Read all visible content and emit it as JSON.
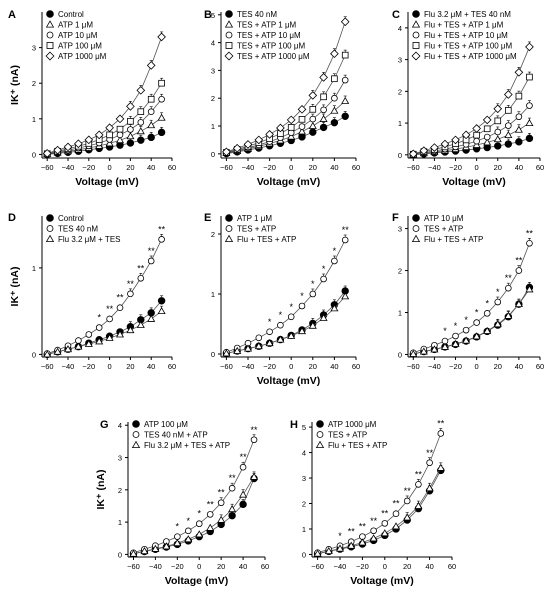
{
  "figure": {
    "xlabel": "Voltage (mV)",
    "ylabel": "IK⁺ (nA)"
  },
  "chart_data": [
    {
      "panel": "A",
      "type": "scatter",
      "x": [
        -60,
        -50,
        -40,
        -30,
        -20,
        -10,
        0,
        10,
        20,
        30,
        40,
        50
      ],
      "xticks": [
        "-60",
        "-40",
        "-20",
        "0",
        "20",
        "40",
        "60"
      ],
      "yticks": [
        "0",
        "1",
        "2",
        "3"
      ],
      "xlim": [
        -65,
        60
      ],
      "ylim": [
        -0.1,
        4.0
      ],
      "legend": "top-left",
      "series": [
        {
          "name": "Control",
          "marker": "filled-circle",
          "values": [
            0.0,
            0.03,
            0.06,
            0.09,
            0.13,
            0.17,
            0.21,
            0.26,
            0.32,
            0.4,
            0.48,
            0.62
          ]
        },
        {
          "name": "ATP 1 μM",
          "marker": "triangle",
          "values": [
            0.01,
            0.05,
            0.09,
            0.13,
            0.18,
            0.24,
            0.31,
            0.4,
            0.51,
            0.65,
            0.82,
            1.03
          ]
        },
        {
          "name": "ATP 10 μM",
          "marker": "circle",
          "values": [
            0.01,
            0.07,
            0.12,
            0.18,
            0.24,
            0.32,
            0.42,
            0.55,
            0.7,
            0.9,
            1.2,
            1.55
          ]
        },
        {
          "name": "ATP 100 μM",
          "marker": "square",
          "values": [
            0.02,
            0.09,
            0.16,
            0.23,
            0.31,
            0.42,
            0.55,
            0.71,
            0.93,
            1.2,
            1.55,
            2.0
          ]
        },
        {
          "name": "ATP 1000 μM",
          "marker": "diamond",
          "values": [
            0.03,
            0.12,
            0.21,
            0.3,
            0.41,
            0.55,
            0.75,
            1.0,
            1.35,
            1.8,
            2.5,
            3.3
          ]
        }
      ]
    },
    {
      "panel": "B",
      "type": "scatter",
      "x": [
        -60,
        -50,
        -40,
        -30,
        -20,
        -10,
        0,
        10,
        20,
        30,
        40,
        50
      ],
      "xticks": [
        "-60",
        "-40",
        "-20",
        "0",
        "20",
        "40",
        "60"
      ],
      "yticks": [
        "0",
        "1",
        "2",
        "3",
        "4",
        "5"
      ],
      "xlim": [
        -65,
        60
      ],
      "ylim": [
        -0.15,
        5.1
      ],
      "legend": "top-left",
      "series": [
        {
          "name": "TES 40 nM",
          "marker": "filled-circle",
          "values": [
            0.01,
            0.07,
            0.14,
            0.21,
            0.29,
            0.38,
            0.48,
            0.61,
            0.78,
            0.95,
            1.12,
            1.35
          ]
        },
        {
          "name": "TES + ATP 1 μM",
          "marker": "triangle",
          "values": [
            0.03,
            0.1,
            0.18,
            0.27,
            0.37,
            0.48,
            0.62,
            0.8,
            1.0,
            1.25,
            1.55,
            1.9
          ]
        },
        {
          "name": "TES + ATP 10 μM",
          "marker": "circle",
          "values": [
            0.04,
            0.13,
            0.22,
            0.32,
            0.44,
            0.58,
            0.76,
            0.98,
            1.25,
            1.58,
            2.0,
            2.65
          ]
        },
        {
          "name": "TES + ATP 100 μM",
          "marker": "square",
          "values": [
            0.05,
            0.16,
            0.27,
            0.4,
            0.55,
            0.73,
            0.95,
            1.24,
            1.6,
            2.05,
            2.7,
            3.55
          ]
        },
        {
          "name": "TES + ATP 1000 μM",
          "marker": "diamond",
          "values": [
            0.07,
            0.2,
            0.34,
            0.5,
            0.7,
            0.93,
            1.22,
            1.6,
            2.1,
            2.75,
            3.6,
            4.75
          ]
        }
      ]
    },
    {
      "panel": "C",
      "type": "scatter",
      "x": [
        -60,
        -50,
        -40,
        -30,
        -20,
        -10,
        0,
        10,
        20,
        30,
        40,
        50
      ],
      "xticks": [
        "-60",
        "-40",
        "-20",
        "0",
        "20",
        "40",
        "60"
      ],
      "yticks": [
        "0",
        "1",
        "2",
        "3",
        "4"
      ],
      "xlim": [
        -65,
        60
      ],
      "ylim": [
        -0.1,
        4.5
      ],
      "legend": "top-left",
      "series": [
        {
          "name": "Flu 3.2 μM + TES 40 nM",
          "marker": "filled-circle",
          "values": [
            0.0,
            0.03,
            0.06,
            0.09,
            0.12,
            0.15,
            0.19,
            0.23,
            0.28,
            0.34,
            0.41,
            0.52
          ]
        },
        {
          "name": "Flu + TES + ATP 1 μM",
          "marker": "triangle",
          "values": [
            0.01,
            0.05,
            0.09,
            0.13,
            0.18,
            0.24,
            0.31,
            0.39,
            0.49,
            0.62,
            0.79,
            1.0
          ]
        },
        {
          "name": "Flu + TES + ATP 10 μM",
          "marker": "circle",
          "values": [
            0.01,
            0.07,
            0.12,
            0.18,
            0.25,
            0.33,
            0.43,
            0.56,
            0.72,
            0.92,
            1.2,
            1.55
          ]
        },
        {
          "name": "Flu + TES + ATP 100 μM",
          "marker": "square",
          "values": [
            0.02,
            0.1,
            0.17,
            0.25,
            0.35,
            0.47,
            0.62,
            0.82,
            1.07,
            1.4,
            1.85,
            2.45
          ]
        },
        {
          "name": "Flu + TES + ATP 1000 μM",
          "marker": "diamond",
          "values": [
            0.03,
            0.13,
            0.23,
            0.34,
            0.47,
            0.63,
            0.83,
            1.1,
            1.45,
            1.9,
            2.6,
            3.4
          ]
        }
      ]
    },
    {
      "panel": "D",
      "type": "scatter",
      "x": [
        -60,
        -50,
        -40,
        -30,
        -20,
        -10,
        0,
        10,
        20,
        30,
        40,
        50
      ],
      "xticks": [
        "-60",
        "-40",
        "-20",
        "0",
        "20",
        "40",
        "60"
      ],
      "yticks": [
        "0",
        "1"
      ],
      "xlim": [
        -65,
        60
      ],
      "ylim": [
        -0.03,
        1.6
      ],
      "legend": "top-left",
      "series": [
        {
          "name": "Control",
          "marker": "filled-circle",
          "values": [
            0.0,
            0.03,
            0.06,
            0.09,
            0.13,
            0.17,
            0.21,
            0.26,
            0.32,
            0.4,
            0.48,
            0.62
          ]
        },
        {
          "name": "TES 40 nM",
          "marker": "circle",
          "values": [
            0.01,
            0.05,
            0.1,
            0.16,
            0.23,
            0.31,
            0.41,
            0.54,
            0.7,
            0.88,
            1.08,
            1.33
          ]
        },
        {
          "name": "Flu 3.2 μM + TES",
          "marker": "triangle",
          "values": [
            0.0,
            0.03,
            0.06,
            0.09,
            0.12,
            0.15,
            0.19,
            0.23,
            0.28,
            0.34,
            0.41,
            0.5
          ]
        }
      ],
      "annotations": [
        {
          "x": -10,
          "text": "*"
        },
        {
          "x": 0,
          "text": "**"
        },
        {
          "x": 10,
          "text": "**"
        },
        {
          "x": 20,
          "text": "**"
        },
        {
          "x": 30,
          "text": "**"
        },
        {
          "x": 40,
          "text": "**"
        },
        {
          "x": 50,
          "text": "**"
        }
      ]
    },
    {
      "panel": "E",
      "type": "scatter",
      "x": [
        -60,
        -50,
        -40,
        -30,
        -20,
        -10,
        0,
        10,
        20,
        30,
        40,
        50
      ],
      "xticks": [
        "-60",
        "-40",
        "-20",
        "0",
        "20",
        "40",
        "60"
      ],
      "yticks": [
        "0",
        "1",
        "2"
      ],
      "xlim": [
        -65,
        60
      ],
      "ylim": [
        -0.05,
        2.3
      ],
      "legend": "top-left",
      "series": [
        {
          "name": "ATP 1 μM",
          "marker": "filled-circle",
          "values": [
            0.01,
            0.05,
            0.09,
            0.13,
            0.18,
            0.24,
            0.31,
            0.4,
            0.51,
            0.65,
            0.82,
            1.05
          ]
        },
        {
          "name": "TES + ATP",
          "marker": "circle",
          "values": [
            0.03,
            0.1,
            0.18,
            0.27,
            0.37,
            0.48,
            0.62,
            0.8,
            1.0,
            1.25,
            1.55,
            1.9
          ]
        },
        {
          "name": "Flu + TES + ATP",
          "marker": "triangle",
          "values": [
            0.01,
            0.05,
            0.09,
            0.13,
            0.18,
            0.24,
            0.3,
            0.38,
            0.47,
            0.6,
            0.76,
            0.96
          ]
        }
      ],
      "annotations": [
        {
          "x": -20,
          "text": "*"
        },
        {
          "x": -10,
          "text": "*"
        },
        {
          "x": 0,
          "text": "*"
        },
        {
          "x": 10,
          "text": "*"
        },
        {
          "x": 20,
          "text": "*"
        },
        {
          "x": 30,
          "text": "*"
        },
        {
          "x": 40,
          "text": "*"
        },
        {
          "x": 50,
          "text": "**"
        }
      ]
    },
    {
      "panel": "F",
      "type": "scatter",
      "x": [
        -60,
        -50,
        -40,
        -30,
        -20,
        -10,
        0,
        10,
        20,
        30,
        40,
        50
      ],
      "xticks": [
        "-60",
        "-40",
        "-20",
        "0",
        "20",
        "40",
        "60"
      ],
      "yticks": [
        "0",
        "1",
        "2",
        "3"
      ],
      "xlim": [
        -65,
        60
      ],
      "ylim": [
        -0.06,
        3.3
      ],
      "legend": "top-left",
      "series": [
        {
          "name": "ATP 10 μM",
          "marker": "filled-circle",
          "values": [
            0.01,
            0.07,
            0.12,
            0.18,
            0.24,
            0.32,
            0.42,
            0.55,
            0.7,
            0.9,
            1.2,
            1.6
          ]
        },
        {
          "name": "TES + ATP",
          "marker": "circle",
          "values": [
            0.04,
            0.13,
            0.22,
            0.32,
            0.44,
            0.58,
            0.76,
            0.98,
            1.25,
            1.58,
            2.0,
            2.65
          ]
        },
        {
          "name": "Flu + TES + ATP",
          "marker": "triangle",
          "values": [
            0.01,
            0.07,
            0.12,
            0.18,
            0.25,
            0.33,
            0.43,
            0.56,
            0.72,
            0.92,
            1.2,
            1.55
          ]
        }
      ],
      "annotations": [
        {
          "x": -30,
          "text": "*"
        },
        {
          "x": -20,
          "text": "*"
        },
        {
          "x": -10,
          "text": "*"
        },
        {
          "x": 0,
          "text": "*"
        },
        {
          "x": 10,
          "text": "*"
        },
        {
          "x": 20,
          "text": "*"
        },
        {
          "x": 30,
          "text": "**"
        },
        {
          "x": 40,
          "text": "**"
        },
        {
          "x": 50,
          "text": "**"
        }
      ]
    },
    {
      "panel": "G",
      "type": "scatter",
      "x": [
        -60,
        -50,
        -40,
        -30,
        -20,
        -10,
        0,
        10,
        20,
        30,
        40,
        50
      ],
      "xticks": [
        "-60",
        "-40",
        "-20",
        "0",
        "20",
        "40",
        "60"
      ],
      "yticks": [
        "0",
        "1",
        "2",
        "3",
        "4"
      ],
      "xlim": [
        -65,
        60
      ],
      "ylim": [
        -0.08,
        4.1
      ],
      "legend": "top-left",
      "series": [
        {
          "name": "ATP 100 μM",
          "marker": "filled-circle",
          "values": [
            0.02,
            0.09,
            0.16,
            0.23,
            0.31,
            0.42,
            0.55,
            0.71,
            0.93,
            1.2,
            1.55,
            2.35
          ]
        },
        {
          "name": "TES 40 nM + ATP",
          "marker": "circle",
          "values": [
            0.05,
            0.16,
            0.27,
            0.4,
            0.55,
            0.73,
            0.95,
            1.24,
            1.6,
            2.05,
            2.7,
            3.55
          ]
        },
        {
          "name": "Flu 3.2 μM + TES + ATP",
          "marker": "triangle",
          "values": [
            0.02,
            0.1,
            0.17,
            0.25,
            0.35,
            0.47,
            0.62,
            0.82,
            1.07,
            1.4,
            1.85,
            2.4
          ]
        }
      ],
      "annotations": [
        {
          "x": -20,
          "text": "*"
        },
        {
          "x": -10,
          "text": "*"
        },
        {
          "x": 0,
          "text": "*"
        },
        {
          "x": 10,
          "text": "**"
        },
        {
          "x": 20,
          "text": "**"
        },
        {
          "x": 30,
          "text": "**"
        },
        {
          "x": 40,
          "text": "**"
        },
        {
          "x": 50,
          "text": "**"
        }
      ]
    },
    {
      "panel": "H",
      "type": "scatter",
      "x": [
        -60,
        -50,
        -40,
        -30,
        -20,
        -10,
        0,
        10,
        20,
        30,
        40,
        50
      ],
      "xticks": [
        "-60",
        "-40",
        "-20",
        "0",
        "20",
        "40",
        "60"
      ],
      "yticks": [
        "0",
        "1",
        "2",
        "3",
        "4",
        "5"
      ],
      "xlim": [
        -65,
        60
      ],
      "ylim": [
        -0.1,
        5.2
      ],
      "legend": "top-left",
      "series": [
        {
          "name": "ATP 1000 μM",
          "marker": "filled-circle",
          "values": [
            0.03,
            0.12,
            0.21,
            0.3,
            0.41,
            0.55,
            0.75,
            1.0,
            1.35,
            1.8,
            2.5,
            3.3
          ]
        },
        {
          "name": "TES + ATP",
          "marker": "circle",
          "values": [
            0.07,
            0.2,
            0.34,
            0.5,
            0.7,
            0.93,
            1.22,
            1.6,
            2.1,
            2.75,
            3.6,
            4.75
          ]
        },
        {
          "name": "Flu + TES + ATP",
          "marker": "triangle",
          "values": [
            0.03,
            0.13,
            0.23,
            0.34,
            0.47,
            0.63,
            0.83,
            1.1,
            1.45,
            1.9,
            2.6,
            3.4
          ]
        }
      ],
      "annotations": [
        {
          "x": -40,
          "text": "*"
        },
        {
          "x": -30,
          "text": "**"
        },
        {
          "x": -20,
          "text": "**"
        },
        {
          "x": -10,
          "text": "**"
        },
        {
          "x": 0,
          "text": "**"
        },
        {
          "x": 10,
          "text": "**"
        },
        {
          "x": 20,
          "text": "**"
        },
        {
          "x": 30,
          "text": "**"
        },
        {
          "x": 40,
          "text": "**"
        },
        {
          "x": 50,
          "text": "**"
        }
      ]
    }
  ]
}
